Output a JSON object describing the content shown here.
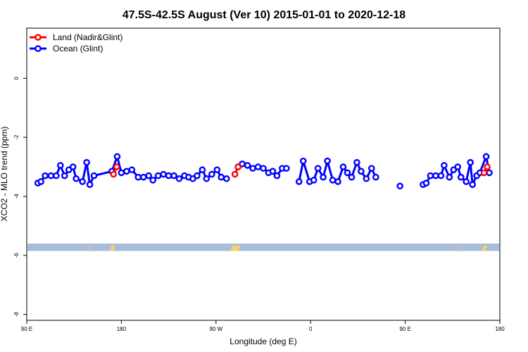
{
  "chart_data": {
    "type": "line",
    "title": "47.5S-42.5S August (Ver 10)   2015-01-01 to 2020-12-18",
    "xlabel": "Longitude (deg E)",
    "ylabel": "XCO2 - MLO trend (ppm)",
    "x_ticks": [
      {
        "value": 90,
        "label": "90 E"
      },
      {
        "value": 180,
        "label": "180"
      },
      {
        "value": 270,
        "label": "90 W"
      },
      {
        "value": 360,
        "label": "0"
      },
      {
        "value": 450,
        "label": "90 E"
      },
      {
        "value": 540,
        "label": "180"
      }
    ],
    "y_ticks": [
      {
        "value": 0,
        "label": "0"
      },
      {
        "value": -2,
        "label": "-2"
      },
      {
        "value": -4,
        "label": "-4"
      },
      {
        "value": -6,
        "label": "-6"
      },
      {
        "value": -8,
        "label": "-8"
      }
    ],
    "xlim": [
      90,
      540
    ],
    "ylim": [
      -8.2,
      1.7
    ],
    "grid": false,
    "legend_position": "top-left",
    "series": [
      {
        "name": "Land (Nadir&Glint)",
        "color": "#ff0000",
        "segments": [
          [
            [
              172.5,
              -3.25
            ],
            [
              175.5,
              -3.0
            ]
          ],
          [
            [
              288,
              -3.25
            ],
            [
              291,
              -3.0
            ]
          ],
          [
            [
              525,
              -3.2
            ],
            [
              528,
              -3.0
            ]
          ]
        ]
      },
      {
        "name": "Ocean (Glint)",
        "color": "#0000ff",
        "segments": [
          [
            [
              100.5,
              -3.55
            ],
            [
              103.5,
              -3.5
            ],
            [
              107.5,
              -3.3
            ],
            [
              113,
              -3.3
            ],
            [
              118,
              -3.3
            ],
            [
              122,
              -2.95
            ],
            [
              126,
              -3.3
            ],
            [
              130,
              -3.1
            ],
            [
              134,
              -3.0
            ],
            [
              137,
              -3.4
            ],
            [
              143,
              -3.5
            ],
            [
              147,
              -2.85
            ],
            [
              150,
              -3.6
            ],
            [
              154,
              -3.3
            ],
            [
              171,
              -3.15
            ],
            [
              176,
              -2.65
            ],
            [
              180,
              -3.2
            ],
            [
              185,
              -3.15
            ],
            [
              190,
              -3.1
            ],
            [
              196,
              -3.35
            ],
            [
              201,
              -3.35
            ],
            [
              206,
              -3.3
            ],
            [
              210,
              -3.45
            ],
            [
              215,
              -3.3
            ],
            [
              220,
              -3.25
            ],
            [
              225,
              -3.3
            ],
            [
              230,
              -3.3
            ],
            [
              235,
              -3.4
            ],
            [
              240,
              -3.3
            ],
            [
              244,
              -3.35
            ],
            [
              248,
              -3.4
            ],
            [
              252,
              -3.3
            ],
            [
              257,
              -3.1
            ],
            [
              261,
              -3.4
            ],
            [
              266,
              -3.25
            ],
            [
              271,
              -3.1
            ],
            [
              275,
              -3.35
            ],
            [
              280,
              -3.4
            ]
          ],
          [
            [
              291,
              -3.0
            ],
            [
              295,
              -2.9
            ],
            [
              300,
              -2.95
            ],
            [
              305,
              -3.05
            ],
            [
              310,
              -3.0
            ],
            [
              315,
              -3.05
            ],
            [
              320,
              -3.2
            ],
            [
              324,
              -3.15
            ],
            [
              328,
              -3.3
            ],
            [
              333,
              -3.05
            ],
            [
              337,
              -3.05
            ]
          ],
          [
            [
              349,
              -3.5
            ],
            [
              353,
              -2.8
            ],
            [
              359,
              -3.5
            ],
            [
              363,
              -3.45
            ],
            [
              367,
              -3.05
            ],
            [
              372,
              -3.35
            ],
            [
              376,
              -2.8
            ],
            [
              381,
              -3.45
            ],
            [
              386,
              -3.5
            ],
            [
              391,
              -3.0
            ],
            [
              395,
              -3.2
            ],
            [
              399,
              -3.35
            ],
            [
              404,
              -2.85
            ],
            [
              408,
              -3.15
            ],
            [
              413,
              -3.4
            ],
            [
              418,
              -3.05
            ],
            [
              422,
              -3.35
            ]
          ],
          [
            [
              445,
              -3.65
            ]
          ],
          [
            [
              467,
              -3.6
            ],
            [
              470,
              -3.55
            ],
            [
              474,
              -3.3
            ],
            [
              479,
              -3.3
            ],
            [
              484,
              -3.3
            ],
            [
              487,
              -2.95
            ],
            [
              492,
              -3.35
            ],
            [
              496,
              -3.1
            ],
            [
              500,
              -3.0
            ],
            [
              503,
              -3.35
            ],
            [
              508,
              -3.5
            ],
            [
              512,
              -2.85
            ],
            [
              514,
              -3.6
            ],
            [
              518,
              -3.3
            ],
            [
              521,
              -3.2
            ],
            [
              527,
              -2.65
            ],
            [
              530,
              -3.2
            ]
          ]
        ]
      }
    ],
    "band": {
      "color": "#a8bcdc",
      "y_range": [
        -5.85,
        -5.6
      ]
    },
    "land_patches": {
      "color": "#f7cf6a",
      "x_ranges": [
        [
          148,
          150
        ],
        [
          169,
          174
        ],
        [
          284,
          293
        ],
        [
          500,
          502
        ],
        [
          523,
          528
        ]
      ]
    }
  }
}
